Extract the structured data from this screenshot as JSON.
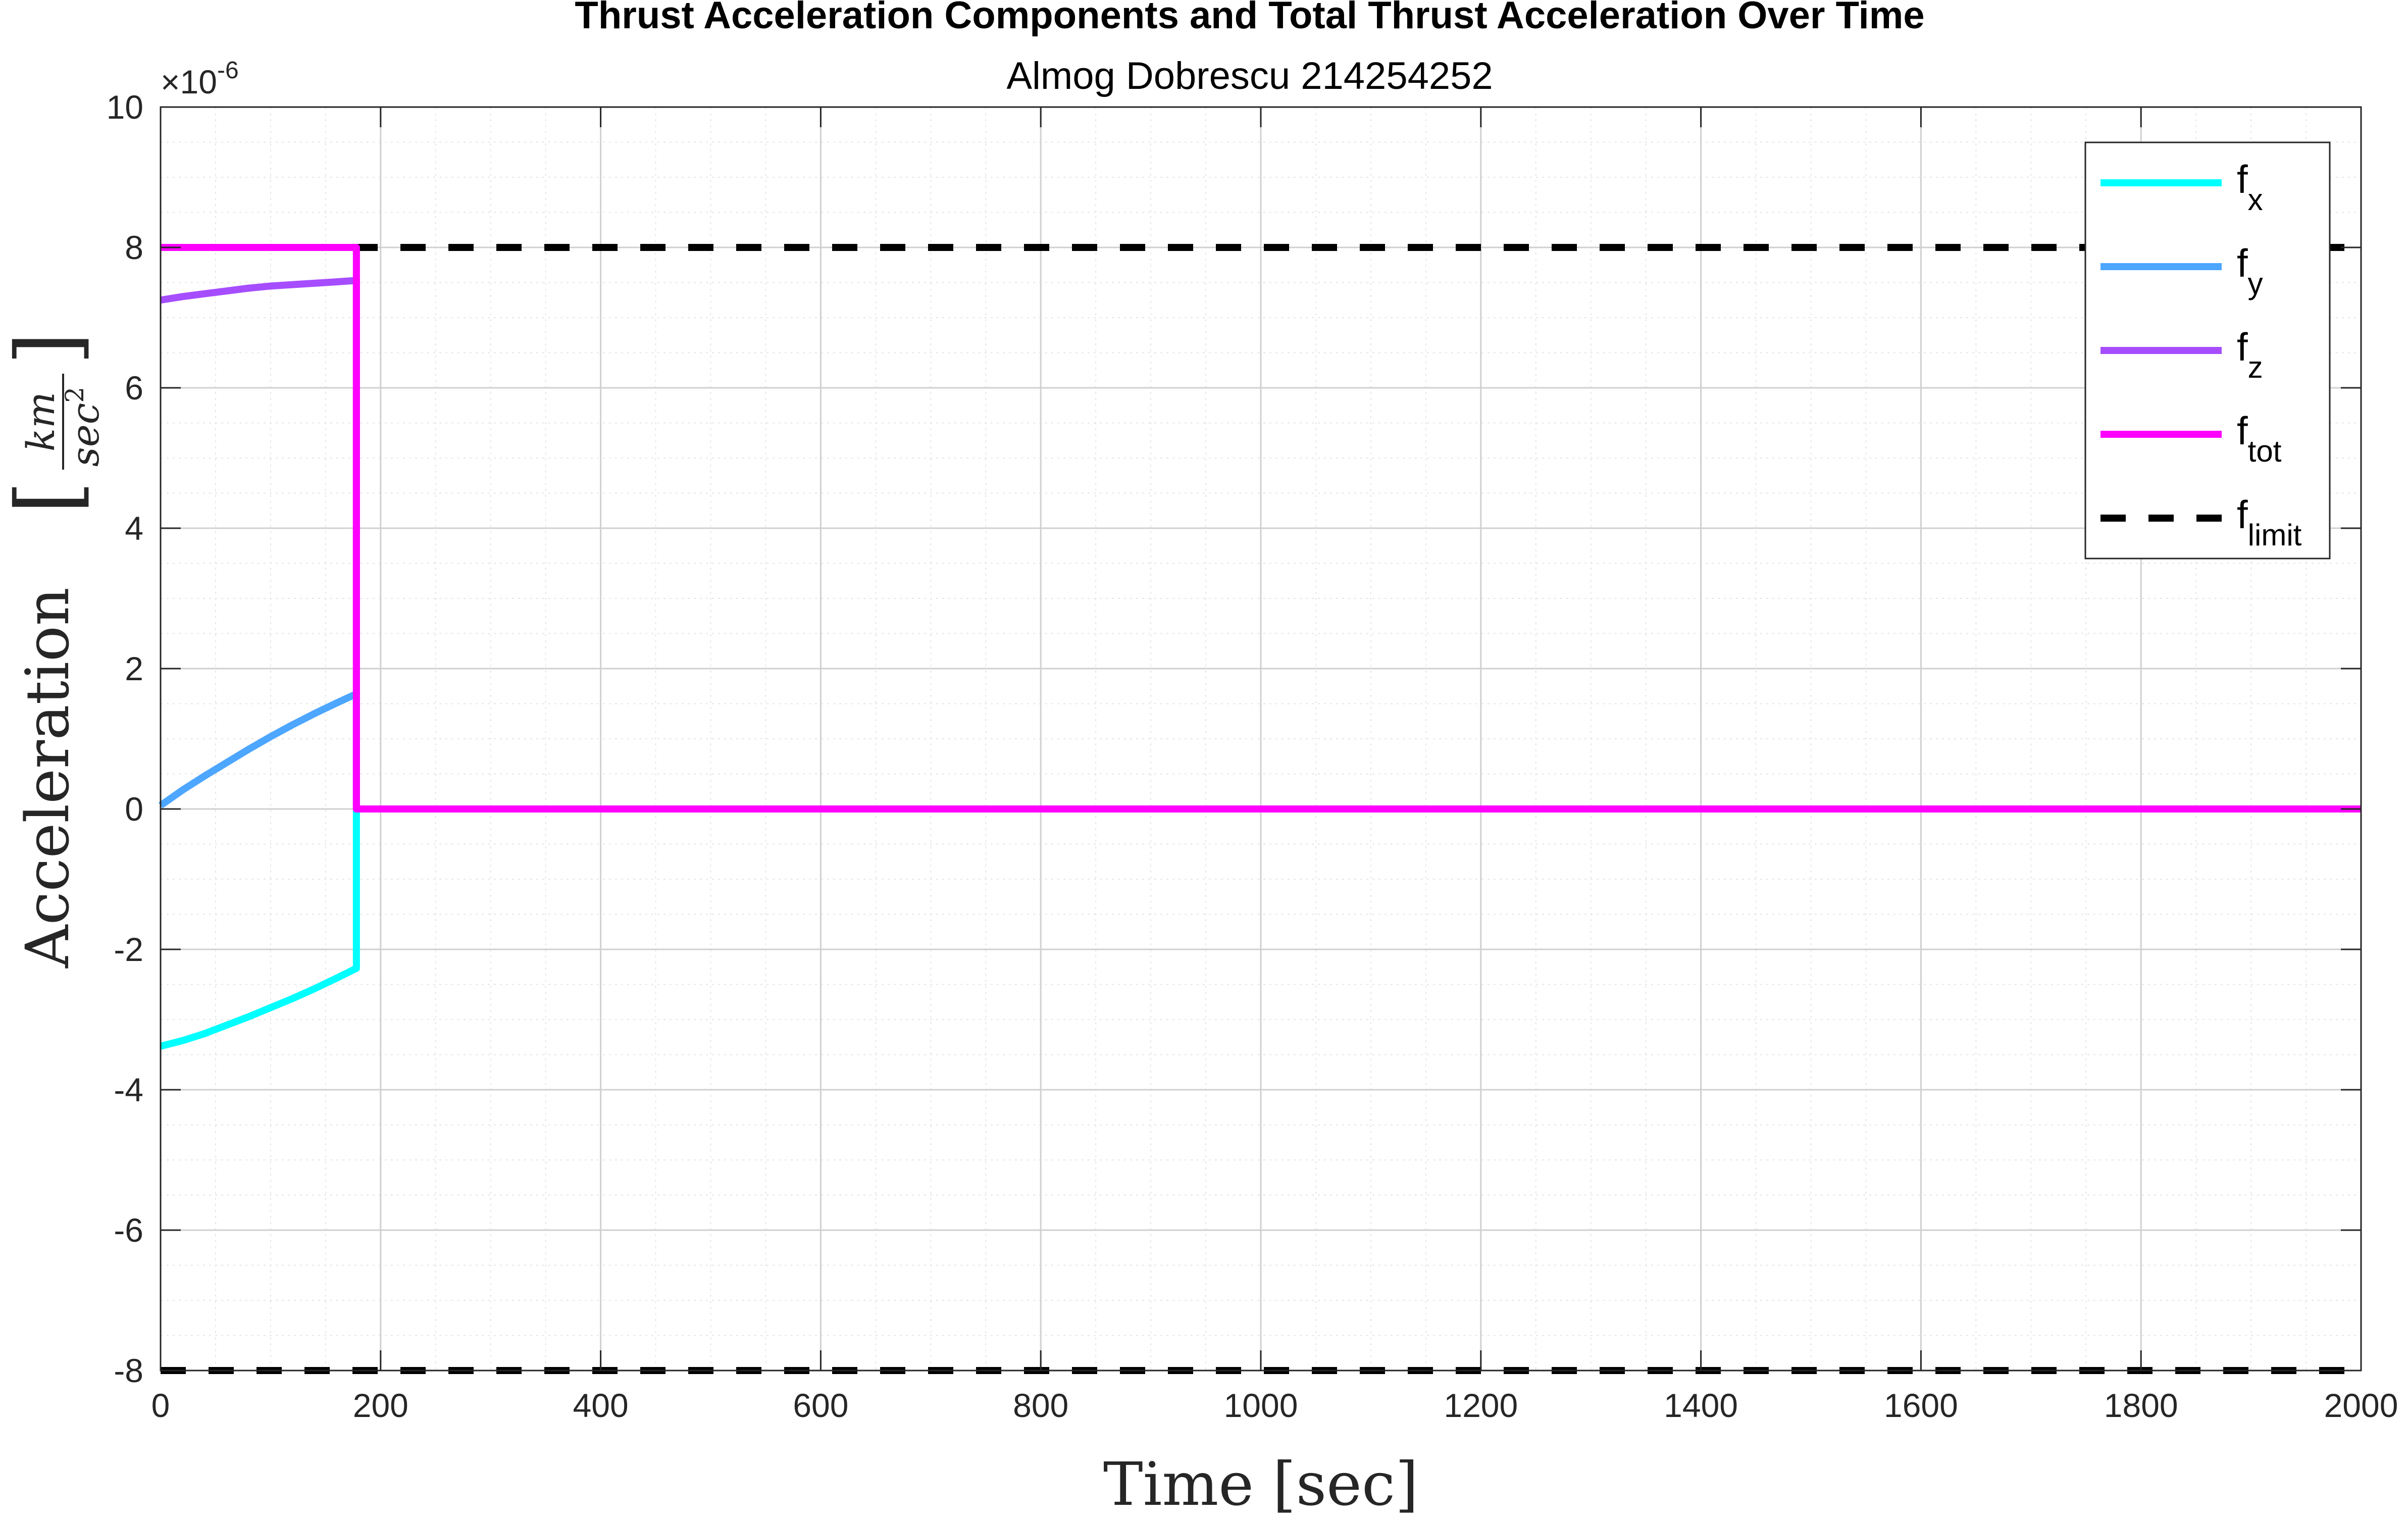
{
  "chart_data": {
    "type": "line",
    "title": "Thrust Acceleration Components and Total Thrust Acceleration Over Time",
    "subtitle": "Almog Dobrescu 214254252",
    "xlabel": "Time [sec]",
    "ylabel_main": "Acceleration",
    "ylabel_unit_num": "km",
    "ylabel_unit_den": "sec",
    "ylabel_unit_den_exp": "2",
    "exponent_label": "×10",
    "exponent_power": "-6",
    "xlim": [
      0,
      2000
    ],
    "ylim": [
      -8,
      10
    ],
    "y_scale_factor": 1e-06,
    "xticks": [
      0,
      200,
      400,
      600,
      800,
      1000,
      1200,
      1400,
      1600,
      1800,
      2000
    ],
    "xtick_labels": [
      "0",
      "200",
      "400",
      "600",
      "800",
      "1000",
      "1200",
      "1400",
      "1600",
      "1800",
      "2000"
    ],
    "yticks": [
      -8,
      -6,
      -4,
      -2,
      0,
      2,
      4,
      6,
      8,
      10
    ],
    "ytick_labels": [
      "-8",
      "-6",
      "-4",
      "-2",
      "0",
      "2",
      "4",
      "6",
      "8",
      "10"
    ],
    "grid": true,
    "minor_grid": true,
    "legend_position": "top-right",
    "series": [
      {
        "name": "f",
        "sub": "x",
        "color": "#00ffff",
        "style": "solid",
        "x": [
          0,
          20,
          40,
          60,
          80,
          100,
          120,
          140,
          160,
          178,
          178,
          180,
          2000
        ],
        "y": [
          -3.38,
          -3.3,
          -3.2,
          -3.08,
          -2.96,
          -2.83,
          -2.7,
          -2.56,
          -2.41,
          -2.27,
          0,
          0,
          0
        ]
      },
      {
        "name": "f",
        "sub": "y",
        "color": "#4da6ff",
        "style": "solid",
        "x": [
          0,
          20,
          40,
          60,
          80,
          100,
          120,
          140,
          160,
          178,
          178,
          180,
          2000
        ],
        "y": [
          0.05,
          0.27,
          0.47,
          0.66,
          0.85,
          1.03,
          1.2,
          1.36,
          1.51,
          1.64,
          0,
          0,
          0
        ]
      },
      {
        "name": "f",
        "sub": "z",
        "color": "#a64dff",
        "style": "solid",
        "x": [
          0,
          20,
          40,
          60,
          80,
          100,
          120,
          140,
          160,
          178,
          178,
          180,
          2000
        ],
        "y": [
          7.25,
          7.3,
          7.34,
          7.38,
          7.42,
          7.45,
          7.47,
          7.49,
          7.51,
          7.53,
          0,
          0,
          0
        ]
      },
      {
        "name": "f",
        "sub": "tot",
        "color": "#ff00ff",
        "style": "solid",
        "x": [
          0,
          178,
          178,
          2000
        ],
        "y": [
          8,
          8,
          0,
          0
        ]
      },
      {
        "name": "f",
        "sub": "limit",
        "color": "#000000",
        "style": "dashed",
        "x": [
          0,
          2000
        ],
        "y": [
          8,
          8
        ],
        "mirror_y": [
          -8,
          -8
        ]
      }
    ]
  }
}
